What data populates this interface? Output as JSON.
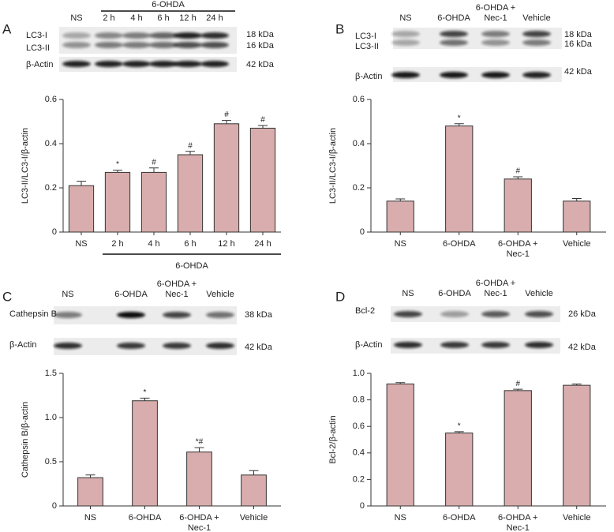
{
  "chart_data": [
    {
      "type": "bar",
      "panel_label": "A",
      "ylabel": "LC3-II/LC3-I/β-actin",
      "categories": [
        "NS",
        "2 h",
        "4 h",
        "6 h",
        "12 h",
        "24 h"
      ],
      "values": [
        0.21,
        0.27,
        0.27,
        0.35,
        0.49,
        0.47
      ],
      "errors": [
        0.02,
        0.01,
        0.02,
        0.015,
        0.015,
        0.012
      ],
      "annotations": [
        null,
        "*",
        "#",
        "#",
        "#",
        "#"
      ],
      "x_group_label": "6-OHDA",
      "color": "#d9adad",
      "ylim": [
        0,
        0.6
      ],
      "yticks": [
        0,
        0.2,
        0.4,
        0.6
      ],
      "blot": {
        "lanes": [
          "NS",
          "2 h",
          "4 h",
          "6 h",
          "12 h",
          "24 h"
        ],
        "group_label": "6-OHDA",
        "row_labels": [
          "LC3-I",
          "LC3-II",
          "β-Actin"
        ],
        "sizes": [
          "18 kDa",
          "16 kDa",
          "42 kDa"
        ]
      }
    },
    {
      "type": "bar",
      "panel_label": "B",
      "ylabel": "LC3-II/LC3-I/β-actin",
      "categories": [
        "NS",
        "6-OHDA",
        "6-OHDA +\nNec-1",
        "Vehicle"
      ],
      "values": [
        0.14,
        0.48,
        0.24,
        0.14
      ],
      "errors": [
        0.01,
        0.01,
        0.01,
        0.012
      ],
      "annotations": [
        null,
        "*",
        "#",
        null
      ],
      "color": "#d9adad",
      "ylim": [
        0,
        0.6
      ],
      "yticks": [
        0,
        0.2,
        0.4,
        0.6
      ],
      "blot": {
        "lanes": [
          "NS",
          "6-OHDA",
          "6-OHDA +\nNec-1",
          "Vehicle"
        ],
        "row_labels": [
          "LC3-I",
          "LC3-II",
          "β-Actin"
        ],
        "sizes": [
          "18 kDa",
          "16 kDa",
          "42 kDa"
        ]
      }
    },
    {
      "type": "bar",
      "panel_label": "C",
      "ylabel": "Cathepsin B/β-actin",
      "categories": [
        "NS",
        "6-OHDA",
        "6-OHDA +\nNec-1",
        "Vehicle"
      ],
      "values": [
        0.32,
        1.19,
        0.61,
        0.35
      ],
      "errors": [
        0.03,
        0.03,
        0.05,
        0.05
      ],
      "annotations": [
        null,
        "*",
        "*#",
        null
      ],
      "color": "#d9adad",
      "ylim": [
        0,
        1.5
      ],
      "yticks": [
        0,
        0.5,
        {
          "value": 1,
          "label": "1.0"
        },
        1.5
      ],
      "blot": {
        "lanes": [
          "NS",
          "6-OHDA",
          "6-OHDA +\nNec-1",
          "Vehicle"
        ],
        "row_labels": [
          "Cathepsin B",
          "β-Actin"
        ],
        "sizes": [
          "38 kDa",
          "42 kDa"
        ]
      }
    },
    {
      "type": "bar",
      "panel_label": "D",
      "ylabel": "Bcl-2/β-actin",
      "categories": [
        "NS",
        "6-OHDA",
        "6-OHDA +\nNec-1",
        "Vehicle"
      ],
      "values": [
        0.92,
        0.55,
        0.87,
        0.91
      ],
      "errors": [
        0.01,
        0.01,
        0.01,
        0.01
      ],
      "annotations": [
        null,
        "*",
        "#",
        null
      ],
      "color": "#d9adad",
      "ylim": [
        0,
        1
      ],
      "yticks": [
        0,
        0.2,
        0.4,
        0.6,
        0.8,
        {
          "value": 1,
          "label": "1.0"
        }
      ],
      "blot": {
        "lanes": [
          "NS",
          "6-OHDA",
          "6-OHDA +\nNec-1",
          "Vehicle"
        ],
        "row_labels": [
          "Bcl-2",
          "β-Actin"
        ],
        "sizes": [
          "26 kDa",
          "42 kDa"
        ]
      }
    }
  ]
}
